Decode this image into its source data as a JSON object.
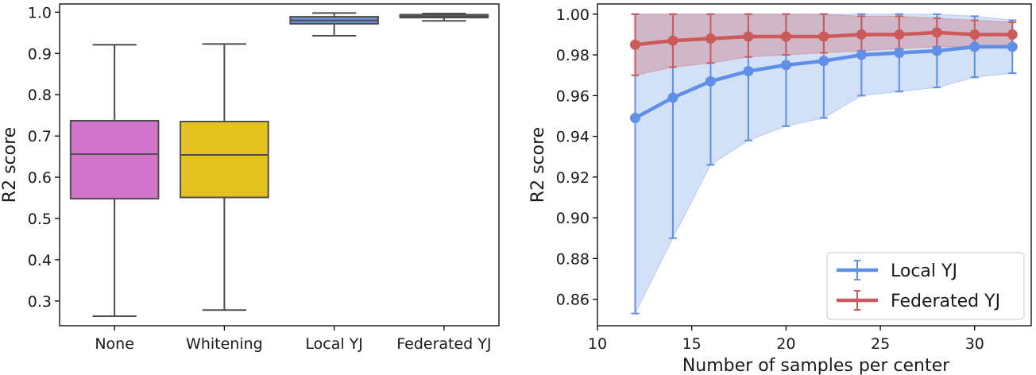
{
  "chart_data": [
    {
      "type": "box",
      "ylabel": "R2 score",
      "ylim": [
        0.24,
        1.02
      ],
      "yticks": [
        "0.3",
        "0.4",
        "0.5",
        "0.6",
        "0.7",
        "0.8",
        "0.9",
        "1.0"
      ],
      "categories": [
        "None",
        "Whitening",
        "Local YJ",
        "Federated YJ"
      ],
      "boxes": [
        {
          "label": "None",
          "whislo": 0.263,
          "q1": 0.548,
          "med": 0.656,
          "q3": 0.737,
          "whishi": 0.921,
          "color": "#d176ca"
        },
        {
          "label": "Whitening",
          "whislo": 0.278,
          "q1": 0.551,
          "med": 0.654,
          "q3": 0.735,
          "whishi": 0.923,
          "color": "#e4c21f"
        },
        {
          "label": "Local YJ",
          "whislo": 0.943,
          "q1": 0.972,
          "med": 0.98,
          "q3": 0.989,
          "whishi": 0.998,
          "color": "#6f90d8"
        },
        {
          "label": "Federated YJ",
          "whislo": 0.979,
          "q1": 0.987,
          "med": 0.99,
          "q3": 0.994,
          "whishi": 0.997,
          "color": "#6f90d8"
        }
      ]
    },
    {
      "type": "line",
      "xlabel": "Number of samples per center",
      "ylabel": "R2 score",
      "xlim": [
        10,
        33
      ],
      "ylim": [
        0.847,
        1.005
      ],
      "xticks": [
        "10",
        "15",
        "20",
        "25",
        "30"
      ],
      "yticks": [
        "0.86",
        "0.88",
        "0.90",
        "0.92",
        "0.94",
        "0.96",
        "0.98",
        "1.00"
      ],
      "legend_position": "lower-right",
      "x": [
        12,
        14,
        16,
        18,
        20,
        22,
        24,
        26,
        28,
        30,
        32
      ],
      "series": [
        {
          "name": "Local YJ",
          "color": "#5f8fe6",
          "values": [
            0.949,
            0.959,
            0.967,
            0.972,
            0.975,
            0.977,
            0.98,
            0.981,
            0.982,
            0.984,
            0.984
          ],
          "lower": [
            0.853,
            0.89,
            0.926,
            0.938,
            0.945,
            0.949,
            0.96,
            0.962,
            0.964,
            0.969,
            0.971
          ],
          "upper": [
            1.0,
            1.0,
            1.0,
            1.0,
            1.0,
            1.0,
            1.0,
            1.0,
            1.0,
            0.999,
            0.997
          ]
        },
        {
          "name": "Federated YJ",
          "color": "#cc5a5a",
          "values": [
            0.985,
            0.987,
            0.988,
            0.989,
            0.989,
            0.989,
            0.99,
            0.99,
            0.991,
            0.99,
            0.99
          ],
          "lower": [
            0.97,
            0.974,
            0.976,
            0.979,
            0.98,
            0.981,
            0.982,
            0.983,
            0.984,
            0.984,
            0.985
          ],
          "upper": [
            1.0,
            1.0,
            1.0,
            1.0,
            1.0,
            1.0,
            0.999,
            0.999,
            0.998,
            0.997,
            0.996
          ]
        }
      ]
    }
  ]
}
